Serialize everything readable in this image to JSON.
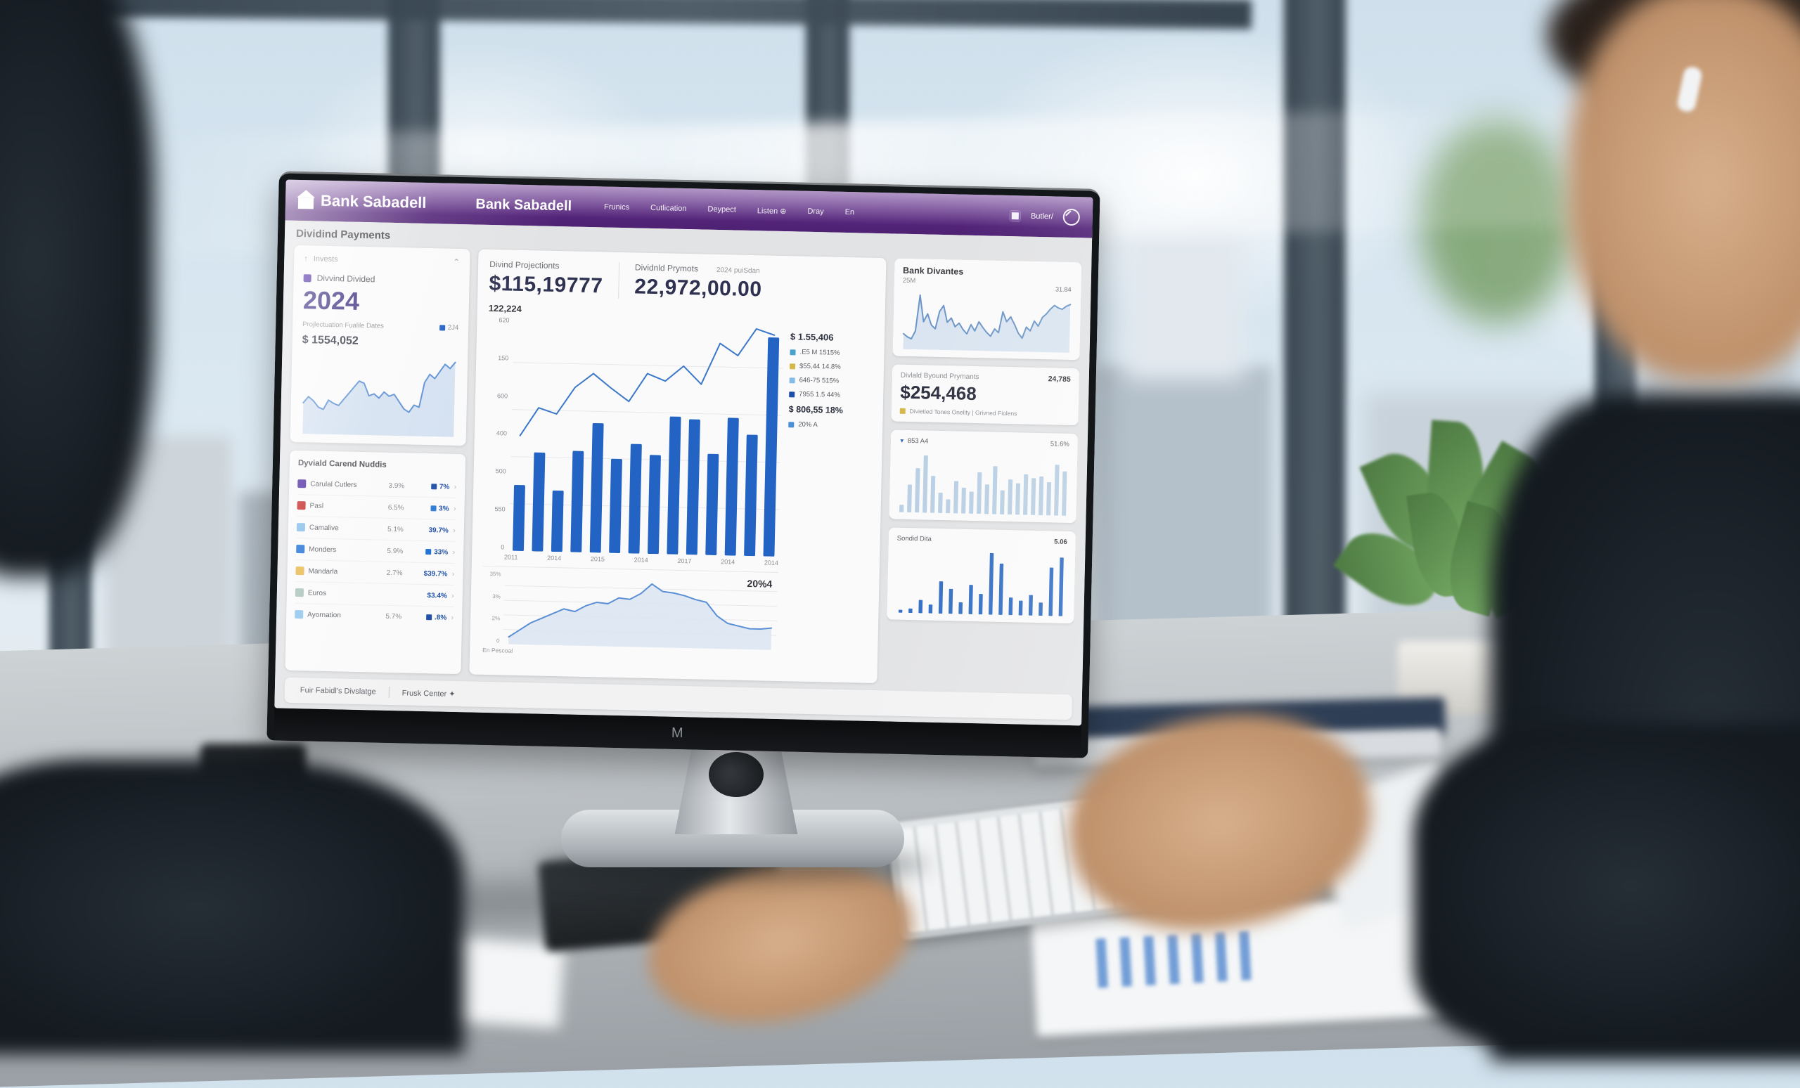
{
  "scene": {
    "monitor_logo": "M"
  },
  "dashboard": {
    "colors": {
      "brand_purple": "#5e2a86",
      "accent_blue": "#2263c3",
      "number_navy": "#2e3150",
      "bar_light_blue": "#b9cfe4",
      "swatch_yellow": "#d4b84a"
    },
    "header": {
      "logo_text": "Bank Sabadell",
      "app_title": "Bank Sabadell",
      "nav": [
        {
          "label": "Frunics"
        },
        {
          "label": "Cutlication"
        },
        {
          "label": "Deypect"
        },
        {
          "label": "Listen ⊕"
        },
        {
          "label": "Dray"
        },
        {
          "label": "En"
        }
      ],
      "user_label": "Butler/"
    },
    "page_title": "Dividind Payments",
    "sidebar": {
      "invests_label": "Invests",
      "series_label": "Divvind Divided",
      "year": "2024",
      "projection_label": "Projlectuation Fualile Dates",
      "projection_badge": "2J4",
      "amount": "$ 1554,052",
      "holdings_title": "Dyviald Carend Nuddis",
      "holdings": [
        {
          "color": "#4b2aa3",
          "name": "Carulal Cutlers",
          "pct": "3.9%",
          "value": "7%",
          "sq": "#1d4fa8"
        },
        {
          "color": "#c42525",
          "name": "Pasl",
          "pct": "6.5%",
          "value": "3%",
          "sq": "#2e7cd6"
        },
        {
          "color": "#85bce8",
          "name": "Camalive",
          "pct": "5.1%",
          "value": "39.7%",
          "sq": ""
        },
        {
          "color": "#1d6fd6",
          "name": "Monders",
          "pct": "5.9%",
          "value": "33%",
          "sq": "#1d6fd6"
        },
        {
          "color": "#e8b84b",
          "name": "Mandarla",
          "pct": "2.7%",
          "value": "$39.7%",
          "sq": ""
        },
        {
          "color": "#a9c3ba",
          "name": "Euros",
          "pct": "",
          "value": "$3.4%",
          "sq": ""
        },
        {
          "color": "#8ec6ee",
          "name": "Ayornation",
          "pct": "5.7%",
          "value": ".8%",
          "sq": "#1d4fa8"
        }
      ]
    },
    "main": {
      "proj_label": "Divind Projectionts",
      "proj_value": "$115,19777",
      "pay_label": "Dividnld Prymots",
      "pay_period": "2024 puiSdan",
      "pay_value": "22,972,00.00",
      "chart_value": "122,224",
      "yticks": [
        "620",
        "150",
        "600",
        "400",
        "500",
        "550",
        "0"
      ],
      "xticks": [
        "2011",
        "2014",
        "2015",
        "2014",
        "2017",
        "2014",
        "2014"
      ],
      "legend_top": "$ 1.55,406",
      "legend": [
        {
          "color": "#4aa3cc",
          "label": ".E5 M 1515%"
        },
        {
          "color": "#d4b84a",
          "label": "$55,44 14.8%"
        },
        {
          "color": "#85bce8",
          "label": "646-75 515%"
        },
        {
          "color": "#1d4fa8",
          "label": "7955 1.5 44%"
        }
      ],
      "legend_amount": "$ 806,55 18%",
      "legend_foot": {
        "color": "#4a90d9",
        "label": "20% A"
      },
      "mini_yticks": [
        "35%",
        "3%",
        "2%",
        "0"
      ],
      "mini_value": "20%4",
      "mini_caption": "En Pescoal"
    },
    "right": {
      "divantes_title": "Bank Divantes",
      "divantes_sub": "25M",
      "divantes_value": "31.84",
      "byound_label": "Divlald Byound Prymants",
      "byound_badge": "24,785",
      "byound_amount": "$254,468",
      "byound_foot": "Divietied Tones Onelity | Grivned Fiolens",
      "adset_label": "853 A4",
      "adset_value": "51.6%",
      "sonded_title": "Sondid Dita",
      "sonded_value": "5.06"
    },
    "footer_tabs": [
      {
        "label": "Fuir Fabidl's Divslatge"
      },
      {
        "label": "Frusk Center ✦"
      }
    ]
  },
  "chart_data": [
    {
      "id": "sidebar_trend",
      "type": "area",
      "title": "Projection dates trend",
      "line": [
        30,
        36,
        32,
        26,
        24,
        33,
        30,
        28,
        34,
        40,
        46,
        52,
        50,
        38,
        40,
        36,
        42,
        38,
        40,
        33,
        26,
        23,
        30,
        28,
        52,
        60,
        56,
        63,
        70,
        66,
        72
      ],
      "ymax": 80,
      "line_color": "#5b8fd4",
      "fill_color": "#cfdef0",
      "grid": false,
      "legend": "none"
    },
    {
      "id": "main_projection",
      "type": "combo",
      "title": "Divind Projectionts by year",
      "categories": [
        "2011",
        "2014",
        "2015",
        "2014",
        "2017",
        "2014",
        "2014"
      ],
      "values": [
        280,
        420,
        260,
        430,
        550,
        400,
        465,
        420,
        585,
        575,
        430,
        585,
        515,
        930
      ],
      "line": [
        490,
        610,
        585,
        700,
        760,
        700,
        645,
        765,
        735,
        800,
        725,
        900,
        850,
        965,
        940
      ],
      "ymax": 1000,
      "ylim": [
        0,
        1000
      ],
      "bar_color": "#2263c3",
      "line_color": "#3b78c9",
      "bar_width": 0.58,
      "grid": true,
      "legend": "right"
    },
    {
      "id": "mini_trend",
      "type": "area",
      "title": "En Pescoal percent trend",
      "line": [
        6,
        12,
        18,
        22,
        26,
        30,
        28,
        33,
        36,
        35,
        40,
        39,
        44,
        52,
        46,
        45,
        43,
        40,
        38,
        27,
        21,
        19,
        17,
        17,
        18
      ],
      "ymax": 60,
      "line_color": "#5b8fd4",
      "fill_color": "#dbe6f2",
      "grid": true,
      "legend": "none"
    },
    {
      "id": "divantes",
      "type": "area",
      "title": "Bank Divantes price line",
      "line": [
        25,
        20,
        17,
        30,
        88,
        45,
        58,
        40,
        34,
        62,
        72,
        45,
        52,
        38,
        44,
        34,
        27,
        42,
        32,
        47,
        38,
        30,
        24,
        36,
        30,
        64,
        48,
        56,
        44,
        30,
        22,
        40,
        34,
        50,
        42,
        56,
        62,
        70,
        76,
        72,
        70,
        75,
        78
      ],
      "ymax": 100,
      "line_color": "#6d96c8",
      "fill_color": "#d6e2ef",
      "grid": false,
      "legend": "none"
    },
    {
      "id": "ad_bars",
      "type": "bar",
      "title": "853 A4 distribution",
      "values": [
        8,
        30,
        48,
        62,
        40,
        22,
        15,
        35,
        28,
        24,
        45,
        32,
        52,
        26,
        38,
        34,
        44,
        40,
        42,
        36,
        55,
        48
      ],
      "ymax": 70,
      "bar_color": "#b9cfe4",
      "bar_width": 0.55,
      "grid": false,
      "legend": "none"
    },
    {
      "id": "sonded",
      "type": "bar",
      "title": "Sondid Dita bars",
      "values": [
        2,
        3,
        9,
        6,
        22,
        17,
        8,
        20,
        14,
        42,
        35,
        12,
        10,
        14,
        9,
        33,
        40
      ],
      "ymax": 46,
      "bar_color": "#2e6bc4",
      "bar_width": 0.38,
      "grid": false,
      "legend": "none"
    }
  ]
}
